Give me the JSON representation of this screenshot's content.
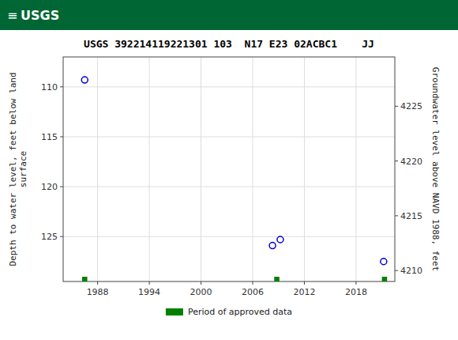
{
  "chart_data": {
    "type": "scatter",
    "header": "USGS",
    "header_icon": "≡",
    "header_color": "#006633",
    "title": "USGS 392214119221301 103  N17 E23 02ACBC1    JJ",
    "y_label": "Depth to water level, feet below land\nsurface",
    "y2_label": "Groundwater level above NAVD 1988, feet",
    "xlim": [
      1984.0,
      2022.5
    ],
    "xticks": [
      1988,
      1994,
      2000,
      2006,
      2012,
      2018
    ],
    "ylim": [
      129.5,
      107.0
    ],
    "yticks": [
      110,
      115,
      120,
      125
    ],
    "y2lim": [
      4209.0,
      4229.5
    ],
    "y2ticks": [
      4210,
      4215,
      4220,
      4225
    ],
    "grid": true,
    "legend": "bottom",
    "series": [
      {
        "type": "scatter",
        "marker": "circle",
        "color": "#0000cc",
        "x": [
          1986.5,
          2008.3,
          2009.2,
          2021.2
        ],
        "values": [
          109.3,
          125.9,
          125.3,
          127.5
        ]
      },
      {
        "name": "Period of approved data",
        "type": "span",
        "color": "#008000",
        "x_start": [
          1986.2,
          2008.5,
          2021.0
        ],
        "x_end": [
          1986.8,
          2009.1,
          2021.6
        ]
      }
    ]
  }
}
